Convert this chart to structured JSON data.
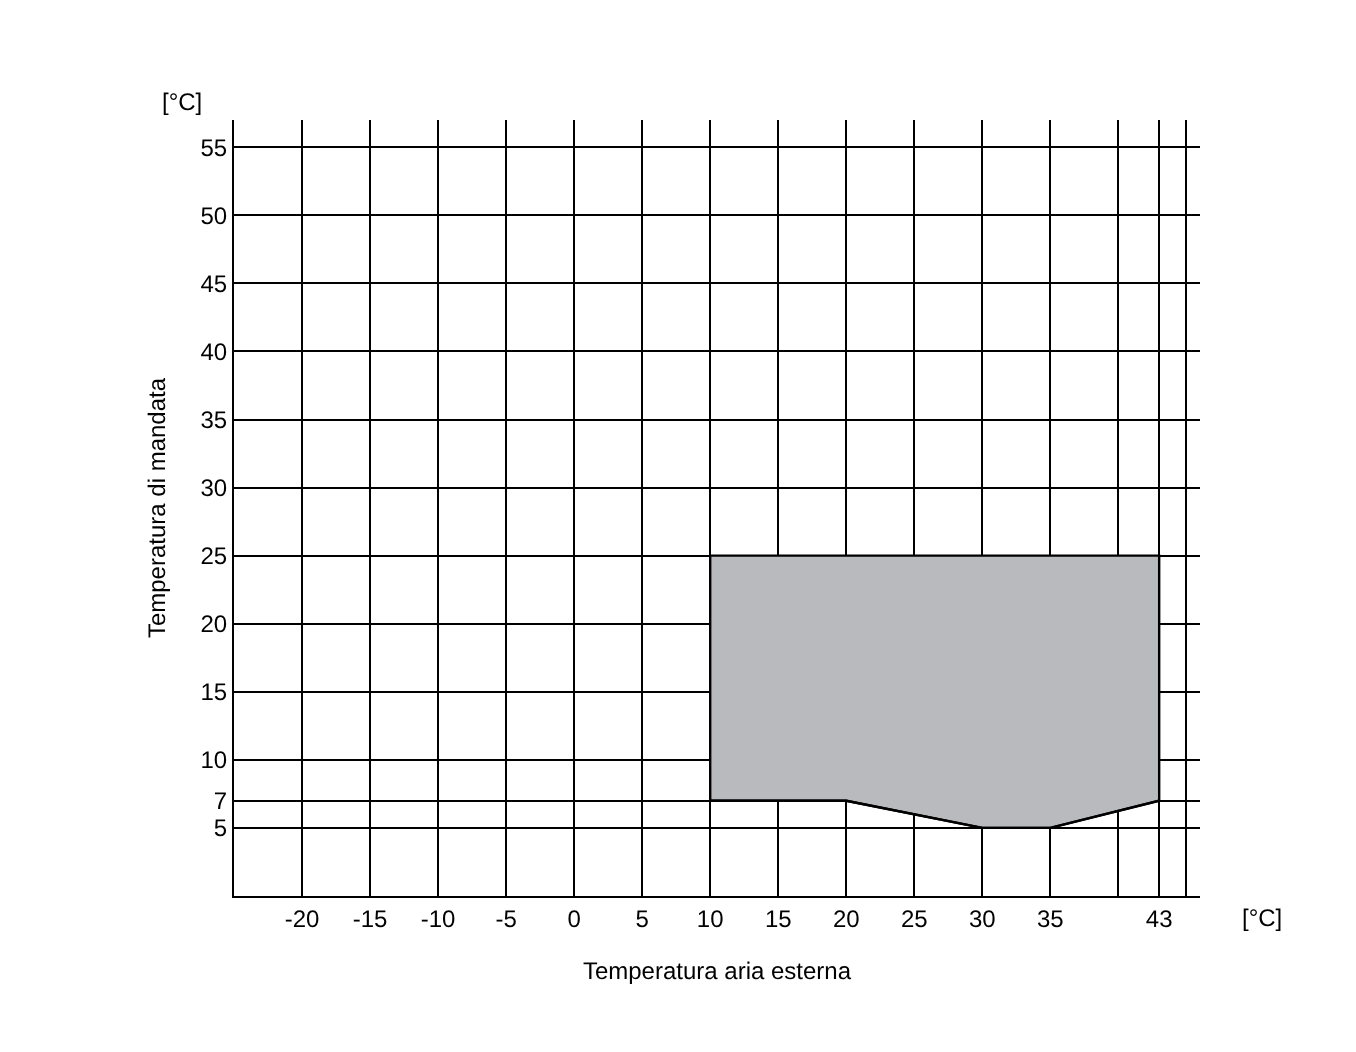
{
  "chart_data": {
    "type": "line",
    "xlabel": "Temperatura aria esterna",
    "ylabel": "Temperatura di mandata",
    "x": [
      10,
      20,
      30,
      35,
      43
    ],
    "series": [
      {
        "color": "#000000",
        "values": [
          7,
          7,
          5,
          5,
          7
        ],
        "lower": [
          7,
          7,
          5,
          5,
          7
        ],
        "upper": [
          25,
          25,
          25,
          25,
          25
        ]
      }
    ],
    "xlim": [
      -25,
      46
    ],
    "xticks": [
      -20,
      -15,
      -10,
      -5,
      0,
      5,
      10,
      15,
      20,
      25,
      30,
      35,
      {
        "value": 40,
        "label": null
      },
      43,
      {
        "value": 45,
        "label": null
      }
    ],
    "ylim": [
      0,
      57
    ],
    "yticks": [
      5,
      7,
      10,
      15,
      20,
      25,
      30,
      35,
      40,
      45,
      50,
      55
    ],
    "grid": true,
    "annotations": [
      "[°C]",
      "[°C]"
    ]
  }
}
